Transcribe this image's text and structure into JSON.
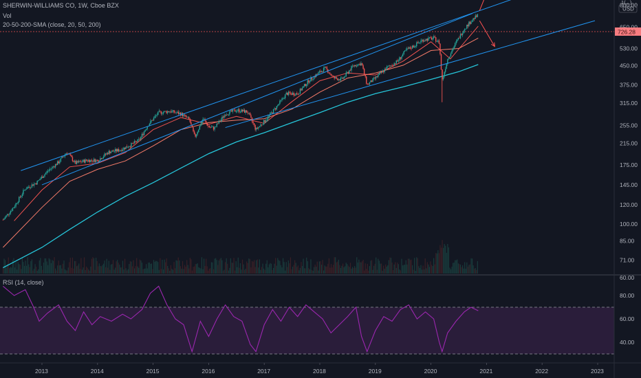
{
  "header": {
    "symbol_line": "SHERWIN-WILLIAMS CO, 1W, Cboe BZX",
    "vol_label": "Vol",
    "sma_label": "20-50-200-SMA (close, 20, 50, 200)",
    "rsi_label": "RSI (14, close)",
    "currency": "USD",
    "scale_unit": "1(...)",
    "last_price": "726.28"
  },
  "colors": {
    "background": "#131722",
    "up": "#26a69a",
    "down": "#ef5350",
    "sma20": "#ef5350",
    "sma50": "#f77c6a",
    "sma200": "#26c6da",
    "channel": "#2196f3",
    "rsi": "#9c27b0",
    "rsi_band": "#2a1d3a",
    "price_label_bg": "#f77c80",
    "arrow": "#ff5252"
  },
  "chart_data": [
    {
      "type": "line",
      "name": "price",
      "scale": "log",
      "y_ticks": [
        800,
        650,
        530,
        450,
        375,
        315,
        255,
        215,
        175,
        145,
        120,
        100,
        85,
        71,
        60
      ],
      "ylim": [
        55,
        900
      ],
      "x_ticks": [
        "2013",
        "2014",
        "2015",
        "2016",
        "2017",
        "2018",
        "2019",
        "2020",
        "2021",
        "2022",
        "2023"
      ],
      "grid": false,
      "last_value": 726.28,
      "close_path": [
        {
          "t": 2012.3,
          "v": 104
        },
        {
          "t": 2012.5,
          "v": 118
        },
        {
          "t": 2012.7,
          "v": 140
        },
        {
          "t": 2012.9,
          "v": 148
        },
        {
          "t": 2013.1,
          "v": 165
        },
        {
          "t": 2013.3,
          "v": 180
        },
        {
          "t": 2013.45,
          "v": 198
        },
        {
          "t": 2013.6,
          "v": 178
        },
        {
          "t": 2013.8,
          "v": 183
        },
        {
          "t": 2014.0,
          "v": 183
        },
        {
          "t": 2014.2,
          "v": 198
        },
        {
          "t": 2014.4,
          "v": 202
        },
        {
          "t": 2014.6,
          "v": 212
        },
        {
          "t": 2014.75,
          "v": 222
        },
        {
          "t": 2014.9,
          "v": 255
        },
        {
          "t": 2015.1,
          "v": 288
        },
        {
          "t": 2015.3,
          "v": 292
        },
        {
          "t": 2015.5,
          "v": 285
        },
        {
          "t": 2015.65,
          "v": 270
        },
        {
          "t": 2015.75,
          "v": 228
        },
        {
          "t": 2015.9,
          "v": 272
        },
        {
          "t": 2016.0,
          "v": 252
        },
        {
          "t": 2016.1,
          "v": 248
        },
        {
          "t": 2016.3,
          "v": 285
        },
        {
          "t": 2016.5,
          "v": 295
        },
        {
          "t": 2016.7,
          "v": 290
        },
        {
          "t": 2016.85,
          "v": 245
        },
        {
          "t": 2017.0,
          "v": 265
        },
        {
          "t": 2017.2,
          "v": 300
        },
        {
          "t": 2017.4,
          "v": 345
        },
        {
          "t": 2017.6,
          "v": 345
        },
        {
          "t": 2017.8,
          "v": 390
        },
        {
          "t": 2017.95,
          "v": 415
        },
        {
          "t": 2018.1,
          "v": 440
        },
        {
          "t": 2018.25,
          "v": 400
        },
        {
          "t": 2018.4,
          "v": 395
        },
        {
          "t": 2018.6,
          "v": 450
        },
        {
          "t": 2018.75,
          "v": 460
        },
        {
          "t": 2018.85,
          "v": 375
        },
        {
          "t": 2019.0,
          "v": 400
        },
        {
          "t": 2019.2,
          "v": 440
        },
        {
          "t": 2019.4,
          "v": 470
        },
        {
          "t": 2019.55,
          "v": 520
        },
        {
          "t": 2019.7,
          "v": 545
        },
        {
          "t": 2019.85,
          "v": 575
        },
        {
          "t": 2020.05,
          "v": 585
        },
        {
          "t": 2020.15,
          "v": 560
        },
        {
          "t": 2020.2,
          "v": 390
        },
        {
          "t": 2020.3,
          "v": 480
        },
        {
          "t": 2020.45,
          "v": 560
        },
        {
          "t": 2020.6,
          "v": 640
        },
        {
          "t": 2020.75,
          "v": 700
        },
        {
          "t": 2020.85,
          "v": 726.28
        }
      ],
      "sma_series": [
        {
          "name": "SMA 20",
          "points": [
            {
              "t": 2012.5,
              "v": 103
            },
            {
              "t": 2013.0,
              "v": 138
            },
            {
              "t": 2013.5,
              "v": 172
            },
            {
              "t": 2014.0,
              "v": 178
            },
            {
              "t": 2014.5,
              "v": 197
            },
            {
              "t": 2015.0,
              "v": 245
            },
            {
              "t": 2015.5,
              "v": 275
            },
            {
              "t": 2016.0,
              "v": 258
            },
            {
              "t": 2016.5,
              "v": 278
            },
            {
              "t": 2017.0,
              "v": 260
            },
            {
              "t": 2017.5,
              "v": 320
            },
            {
              "t": 2018.0,
              "v": 390
            },
            {
              "t": 2018.5,
              "v": 420
            },
            {
              "t": 2019.0,
              "v": 412
            },
            {
              "t": 2019.5,
              "v": 470
            },
            {
              "t": 2020.0,
              "v": 565
            },
            {
              "t": 2020.35,
              "v": 480
            },
            {
              "t": 2020.85,
              "v": 655
            }
          ]
        },
        {
          "name": "SMA 50",
          "points": [
            {
              "t": 2012.3,
              "v": 80
            },
            {
              "t": 2013.0,
              "v": 117
            },
            {
              "t": 2013.5,
              "v": 150
            },
            {
              "t": 2014.0,
              "v": 168
            },
            {
              "t": 2014.5,
              "v": 182
            },
            {
              "t": 2015.0,
              "v": 210
            },
            {
              "t": 2015.5,
              "v": 245
            },
            {
              "t": 2016.0,
              "v": 262
            },
            {
              "t": 2016.5,
              "v": 268
            },
            {
              "t": 2017.0,
              "v": 272
            },
            {
              "t": 2017.5,
              "v": 298
            },
            {
              "t": 2018.0,
              "v": 350
            },
            {
              "t": 2018.5,
              "v": 400
            },
            {
              "t": 2019.0,
              "v": 420
            },
            {
              "t": 2019.5,
              "v": 452
            },
            {
              "t": 2020.0,
              "v": 520
            },
            {
              "t": 2020.5,
              "v": 530
            },
            {
              "t": 2020.85,
              "v": 585
            }
          ]
        },
        {
          "name": "SMA 200",
          "points": [
            {
              "t": 2012.3,
              "v": 66
            },
            {
              "t": 2013.0,
              "v": 80
            },
            {
              "t": 2013.5,
              "v": 95
            },
            {
              "t": 2014.0,
              "v": 112
            },
            {
              "t": 2014.5,
              "v": 130
            },
            {
              "t": 2015.0,
              "v": 148
            },
            {
              "t": 2015.5,
              "v": 170
            },
            {
              "t": 2016.0,
              "v": 195
            },
            {
              "t": 2016.5,
              "v": 218
            },
            {
              "t": 2017.0,
              "v": 238
            },
            {
              "t": 2017.5,
              "v": 262
            },
            {
              "t": 2018.0,
              "v": 288
            },
            {
              "t": 2018.5,
              "v": 318
            },
            {
              "t": 2019.0,
              "v": 345
            },
            {
              "t": 2019.5,
              "v": 368
            },
            {
              "t": 2020.0,
              "v": 395
            },
            {
              "t": 2020.5,
              "v": 425
            },
            {
              "t": 2020.85,
              "v": 455
            }
          ]
        }
      ]
    },
    {
      "type": "line",
      "name": "RSI (14, close)",
      "y_ticks": [
        80,
        60,
        40
      ],
      "ylim": [
        25,
        95
      ],
      "bands": [
        30,
        70
      ],
      "points": [
        {
          "t": 2012.3,
          "v": 88
        },
        {
          "t": 2012.5,
          "v": 80
        },
        {
          "t": 2012.7,
          "v": 85
        },
        {
          "t": 2012.85,
          "v": 70
        },
        {
          "t": 2012.95,
          "v": 58
        },
        {
          "t": 2013.1,
          "v": 65
        },
        {
          "t": 2013.3,
          "v": 72
        },
        {
          "t": 2013.45,
          "v": 58
        },
        {
          "t": 2013.6,
          "v": 50
        },
        {
          "t": 2013.75,
          "v": 66
        },
        {
          "t": 2013.9,
          "v": 55
        },
        {
          "t": 2014.05,
          "v": 62
        },
        {
          "t": 2014.25,
          "v": 58
        },
        {
          "t": 2014.45,
          "v": 64
        },
        {
          "t": 2014.6,
          "v": 60
        },
        {
          "t": 2014.8,
          "v": 68
        },
        {
          "t": 2014.95,
          "v": 82
        },
        {
          "t": 2015.1,
          "v": 88
        },
        {
          "t": 2015.25,
          "v": 72
        },
        {
          "t": 2015.4,
          "v": 60
        },
        {
          "t": 2015.55,
          "v": 55
        },
        {
          "t": 2015.7,
          "v": 32
        },
        {
          "t": 2015.85,
          "v": 58
        },
        {
          "t": 2016.0,
          "v": 45
        },
        {
          "t": 2016.15,
          "v": 60
        },
        {
          "t": 2016.3,
          "v": 72
        },
        {
          "t": 2016.45,
          "v": 62
        },
        {
          "t": 2016.6,
          "v": 58
        },
        {
          "t": 2016.75,
          "v": 38
        },
        {
          "t": 2016.85,
          "v": 32
        },
        {
          "t": 2017.0,
          "v": 55
        },
        {
          "t": 2017.15,
          "v": 68
        },
        {
          "t": 2017.3,
          "v": 58
        },
        {
          "t": 2017.45,
          "v": 70
        },
        {
          "t": 2017.6,
          "v": 62
        },
        {
          "t": 2017.75,
          "v": 72
        },
        {
          "t": 2017.9,
          "v": 66
        },
        {
          "t": 2018.05,
          "v": 60
        },
        {
          "t": 2018.2,
          "v": 48
        },
        {
          "t": 2018.35,
          "v": 55
        },
        {
          "t": 2018.5,
          "v": 62
        },
        {
          "t": 2018.65,
          "v": 70
        },
        {
          "t": 2018.75,
          "v": 45
        },
        {
          "t": 2018.85,
          "v": 32
        },
        {
          "t": 2019.0,
          "v": 50
        },
        {
          "t": 2019.15,
          "v": 62
        },
        {
          "t": 2019.3,
          "v": 58
        },
        {
          "t": 2019.45,
          "v": 68
        },
        {
          "t": 2019.6,
          "v": 72
        },
        {
          "t": 2019.75,
          "v": 60
        },
        {
          "t": 2019.9,
          "v": 66
        },
        {
          "t": 2020.05,
          "v": 60
        },
        {
          "t": 2020.15,
          "v": 40
        },
        {
          "t": 2020.2,
          "v": 32
        },
        {
          "t": 2020.3,
          "v": 48
        },
        {
          "t": 2020.45,
          "v": 58
        },
        {
          "t": 2020.6,
          "v": 66
        },
        {
          "t": 2020.72,
          "v": 70
        },
        {
          "t": 2020.85,
          "v": 67
        }
      ]
    }
  ]
}
